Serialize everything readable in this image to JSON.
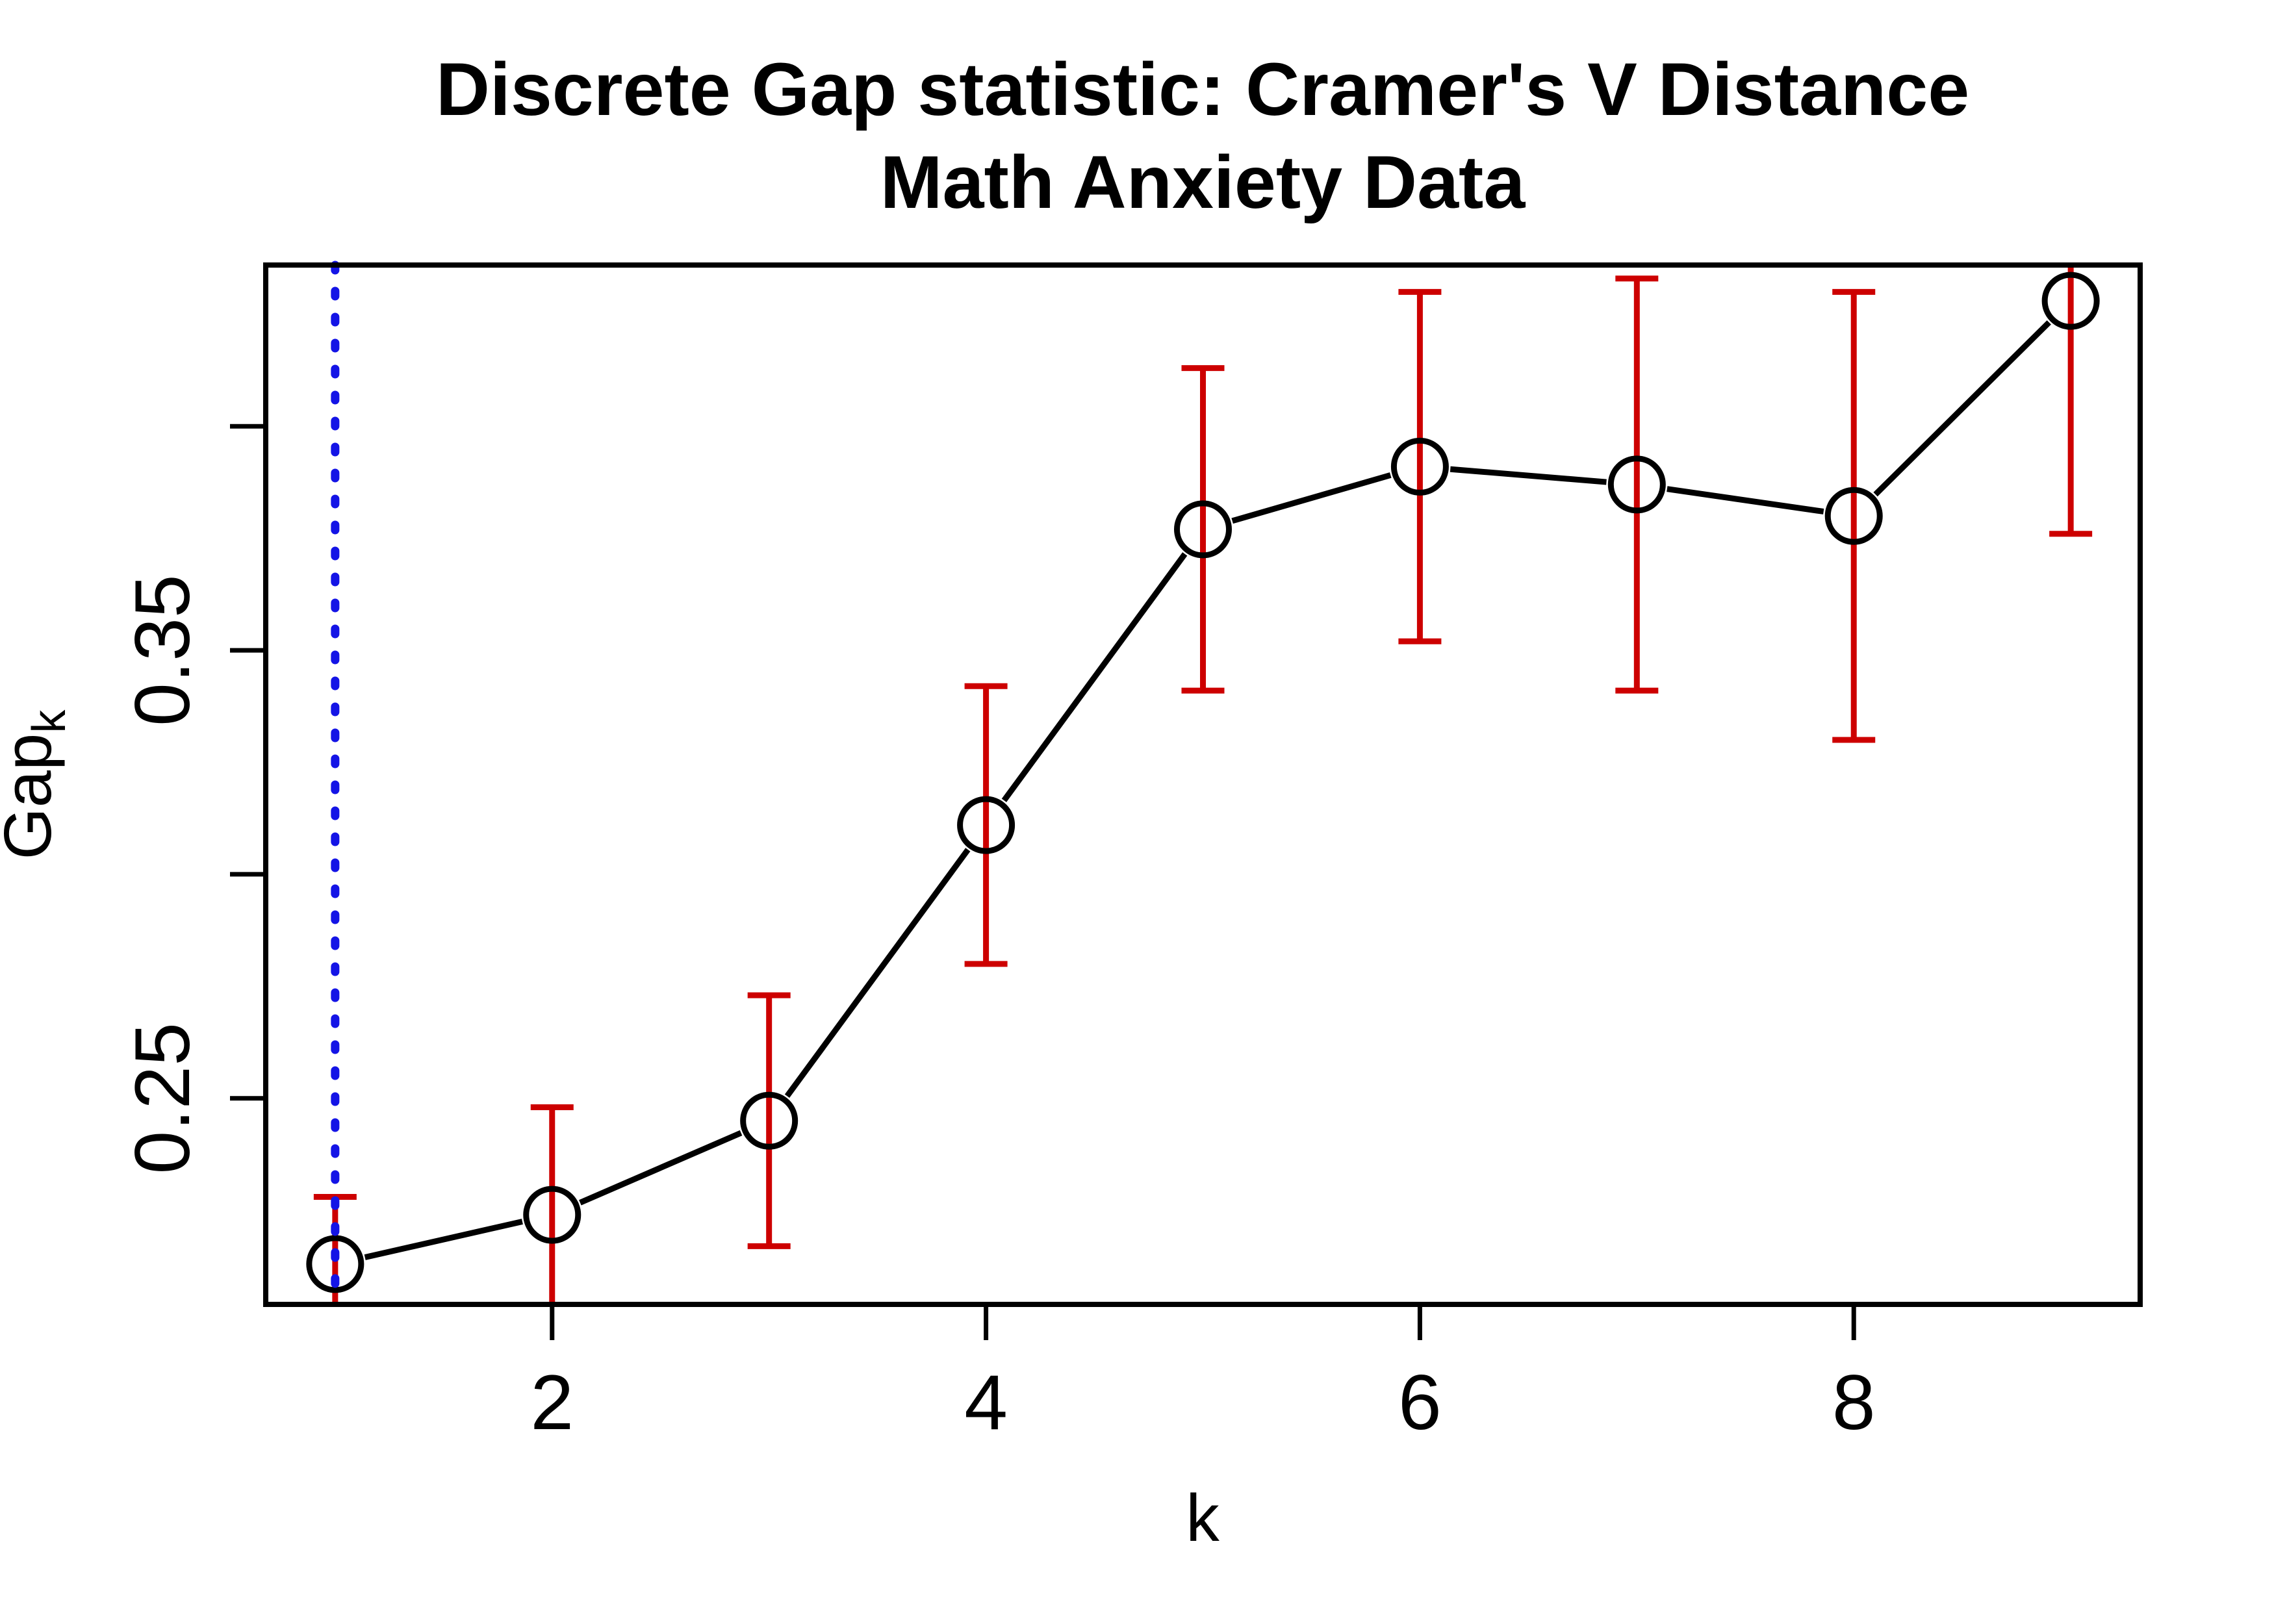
{
  "chart_data": {
    "type": "line",
    "title": "Discrete Gap statistic: Cramer's V Distance",
    "subtitle": "Math Anxiety Data",
    "xlabel": "k",
    "ylabel": "Gap",
    "ylabel_subscript": "k",
    "x": [
      1,
      2,
      3,
      4,
      5,
      6,
      7,
      8,
      9
    ],
    "series": [
      {
        "name": "Gap statistic",
        "values": [
          0.213,
          0.224,
          0.245,
          0.311,
          0.377,
          0.391,
          0.387,
          0.38,
          0.428
        ],
        "error": [
          0.015,
          0.024,
          0.028,
          0.031,
          0.036,
          0.039,
          0.046,
          0.05,
          0.052
        ]
      }
    ],
    "marker": "open-circle",
    "line_style": "solid-with-point-gaps",
    "xlim": [
      0.68,
      9.32
    ],
    "ylim": [
      0.204,
      0.436
    ],
    "xticks": [
      {
        "value": 2,
        "label": "2"
      },
      {
        "value": 4,
        "label": "4"
      },
      {
        "value": 6,
        "label": "6"
      },
      {
        "value": 8,
        "label": "8"
      }
    ],
    "yticks": [
      {
        "value": 0.25,
        "label": "0.25"
      },
      {
        "value": 0.3,
        "label": ""
      },
      {
        "value": 0.35,
        "label": "0.35"
      },
      {
        "value": 0.4,
        "label": ""
      }
    ],
    "grid": false,
    "legend": null,
    "reference_line": {
      "x": 1,
      "style": "dotted",
      "orientation": "vertical"
    },
    "colors": {
      "line": "#000000",
      "marker": "#000000",
      "error_bars": "#CD0000",
      "reference_line": "#1414E6",
      "box": "#000000",
      "background": "#FFFFFF"
    }
  }
}
